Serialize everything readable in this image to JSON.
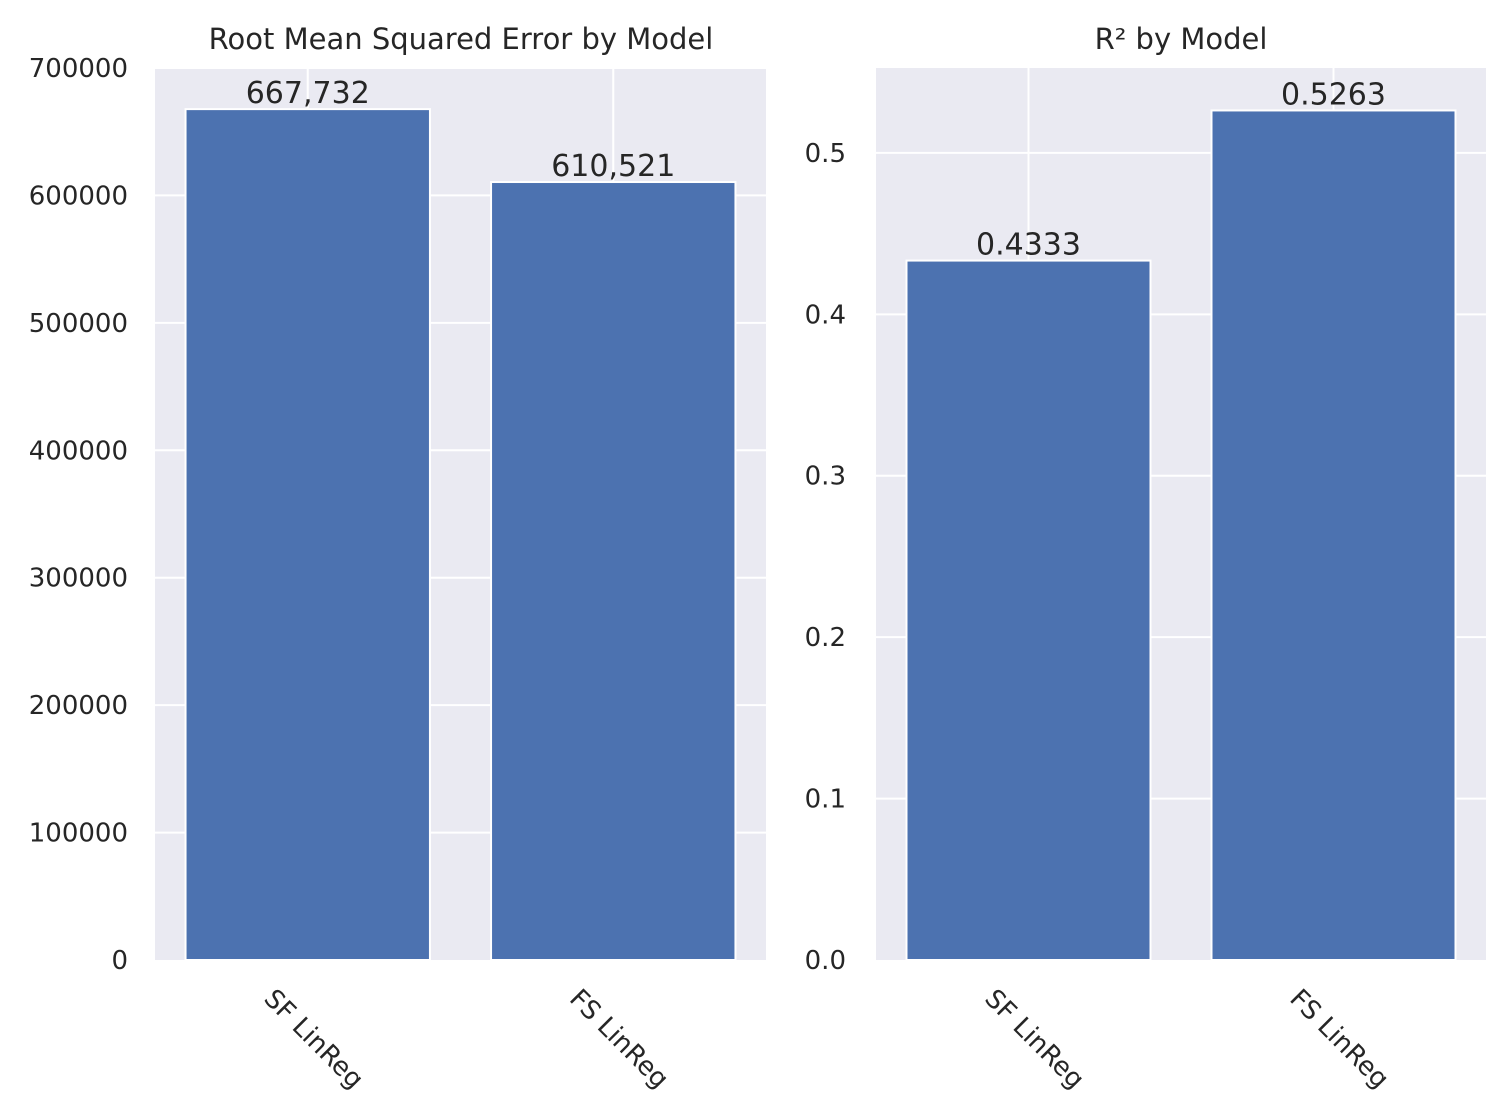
{
  "chart_data": [
    {
      "type": "bar",
      "title": "Root Mean Squared Error by Model",
      "categories": [
        "SF LinReg",
        "FS LinReg"
      ],
      "values": [
        667732,
        610521
      ],
      "value_labels": [
        "667,732",
        "610,521"
      ],
      "ylim": [
        0,
        700000
      ],
      "yticks": [
        0,
        100000,
        200000,
        300000,
        400000,
        500000,
        600000,
        700000
      ],
      "ytick_labels": [
        "0",
        "100000",
        "200000",
        "300000",
        "400000",
        "500000",
        "600000",
        "700000"
      ],
      "xlabel": "",
      "ylabel": "",
      "grid": true,
      "bar_color": "#4c72b0",
      "background_color": "#eaeaf2"
    },
    {
      "type": "bar",
      "title": "R² by Model",
      "categories": [
        "SF LinReg",
        "FS LinReg"
      ],
      "values": [
        0.4333,
        0.5263
      ],
      "value_labels": [
        "0.4333",
        "0.5263"
      ],
      "ylim": [
        0,
        0.5526
      ],
      "yticks": [
        0,
        0.1,
        0.2,
        0.3,
        0.4,
        0.5
      ],
      "ytick_labels": [
        "0.0",
        "0.1",
        "0.2",
        "0.3",
        "0.4",
        "0.5"
      ],
      "xlabel": "",
      "ylabel": "",
      "grid": true,
      "bar_color": "#4c72b0",
      "background_color": "#eaeaf2"
    }
  ]
}
